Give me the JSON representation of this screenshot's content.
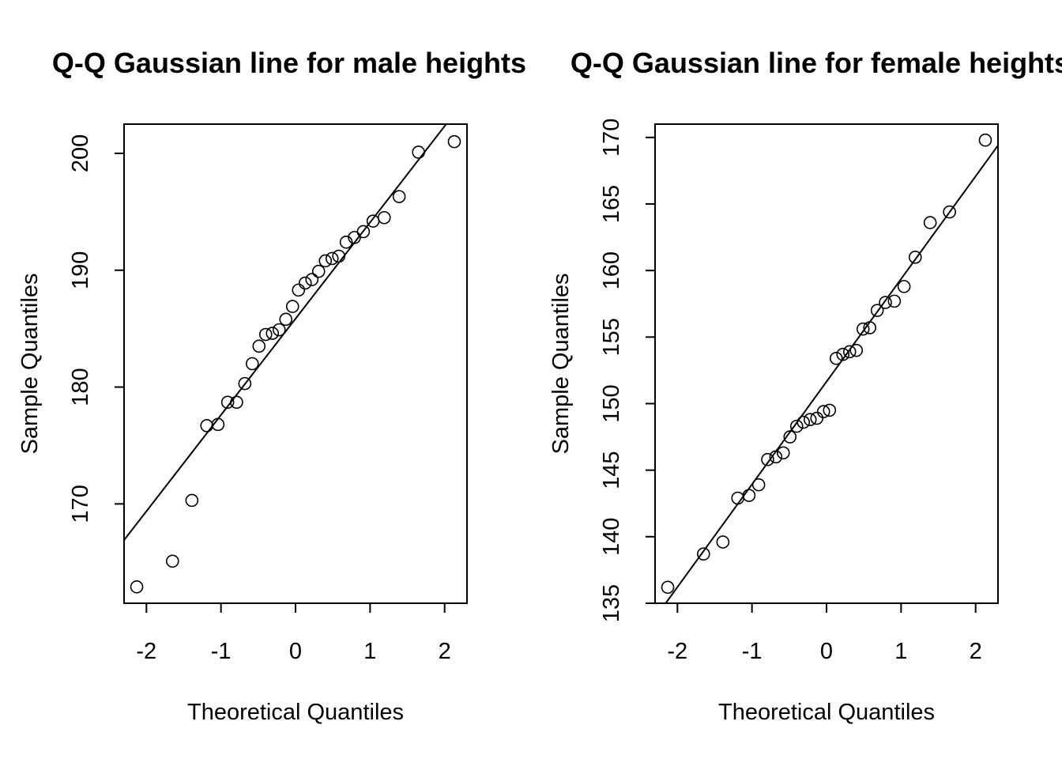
{
  "chart_data": [
    {
      "type": "scatter",
      "title": "Q-Q Gaussian line for male heights",
      "xlabel": "Theoretical Quantiles",
      "ylabel": "Sample Quantiles",
      "xlim": [
        -2.3,
        2.3
      ],
      "ylim": [
        161.5,
        202.5
      ],
      "xticks": [
        -2,
        -1,
        0,
        1,
        2
      ],
      "yticks": [
        170,
        180,
        190,
        200
      ],
      "grid": false,
      "line": {
        "x": [
          -2.3,
          2.3
        ],
        "y": [
          166.9,
          204.8
        ]
      },
      "points": [
        {
          "x": -2.13,
          "y": 162.9
        },
        {
          "x": -1.65,
          "y": 165.1
        },
        {
          "x": -1.39,
          "y": 170.3
        },
        {
          "x": -1.19,
          "y": 176.7
        },
        {
          "x": -1.04,
          "y": 176.8
        },
        {
          "x": -0.91,
          "y": 178.7
        },
        {
          "x": -0.79,
          "y": 178.7
        },
        {
          "x": -0.68,
          "y": 180.3
        },
        {
          "x": -0.58,
          "y": 182.0
        },
        {
          "x": -0.49,
          "y": 183.5
        },
        {
          "x": -0.4,
          "y": 184.5
        },
        {
          "x": -0.31,
          "y": 184.6
        },
        {
          "x": -0.22,
          "y": 184.9
        },
        {
          "x": -0.13,
          "y": 185.8
        },
        {
          "x": -0.04,
          "y": 186.9
        },
        {
          "x": 0.04,
          "y": 188.3
        },
        {
          "x": 0.13,
          "y": 188.9
        },
        {
          "x": 0.22,
          "y": 189.2
        },
        {
          "x": 0.31,
          "y": 189.9
        },
        {
          "x": 0.4,
          "y": 190.8
        },
        {
          "x": 0.49,
          "y": 191.0
        },
        {
          "x": 0.58,
          "y": 191.2
        },
        {
          "x": 0.68,
          "y": 192.4
        },
        {
          "x": 0.79,
          "y": 192.8
        },
        {
          "x": 0.91,
          "y": 193.3
        },
        {
          "x": 1.04,
          "y": 194.2
        },
        {
          "x": 1.19,
          "y": 194.5
        },
        {
          "x": 1.39,
          "y": 196.3
        },
        {
          "x": 1.65,
          "y": 200.1
        },
        {
          "x": 2.13,
          "y": 201.0
        }
      ]
    },
    {
      "type": "scatter",
      "title": "Q-Q Gaussian line for female heights",
      "xlabel": "Theoretical Quantiles",
      "ylabel": "Sample Quantiles",
      "xlim": [
        -2.3,
        2.3
      ],
      "ylim": [
        135,
        171
      ],
      "xticks": [
        -2,
        -1,
        0,
        1,
        2
      ],
      "yticks": [
        135,
        140,
        145,
        150,
        155,
        160,
        165,
        170
      ],
      "grid": false,
      "line": {
        "x": [
          -2.3,
          2.3
        ],
        "y": [
          133.9,
          169.4
        ]
      },
      "points": [
        {
          "x": -2.13,
          "y": 136.2
        },
        {
          "x": -1.65,
          "y": 138.7
        },
        {
          "x": -1.39,
          "y": 139.6
        },
        {
          "x": -1.19,
          "y": 142.9
        },
        {
          "x": -1.04,
          "y": 143.1
        },
        {
          "x": -0.91,
          "y": 143.9
        },
        {
          "x": -0.79,
          "y": 145.8
        },
        {
          "x": -0.68,
          "y": 146.0
        },
        {
          "x": -0.58,
          "y": 146.3
        },
        {
          "x": -0.49,
          "y": 147.5
        },
        {
          "x": -0.4,
          "y": 148.3
        },
        {
          "x": -0.31,
          "y": 148.6
        },
        {
          "x": -0.22,
          "y": 148.8
        },
        {
          "x": -0.13,
          "y": 148.9
        },
        {
          "x": -0.04,
          "y": 149.4
        },
        {
          "x": 0.04,
          "y": 149.5
        },
        {
          "x": 0.13,
          "y": 153.4
        },
        {
          "x": 0.22,
          "y": 153.7
        },
        {
          "x": 0.31,
          "y": 153.9
        },
        {
          "x": 0.4,
          "y": 154.0
        },
        {
          "x": 0.49,
          "y": 155.6
        },
        {
          "x": 0.58,
          "y": 155.7
        },
        {
          "x": 0.68,
          "y": 157.0
        },
        {
          "x": 0.79,
          "y": 157.6
        },
        {
          "x": 0.91,
          "y": 157.7
        },
        {
          "x": 1.04,
          "y": 158.8
        },
        {
          "x": 1.19,
          "y": 161.0
        },
        {
          "x": 1.39,
          "y": 163.6
        },
        {
          "x": 1.65,
          "y": 164.4
        },
        {
          "x": 2.13,
          "y": 169.8
        }
      ]
    }
  ]
}
